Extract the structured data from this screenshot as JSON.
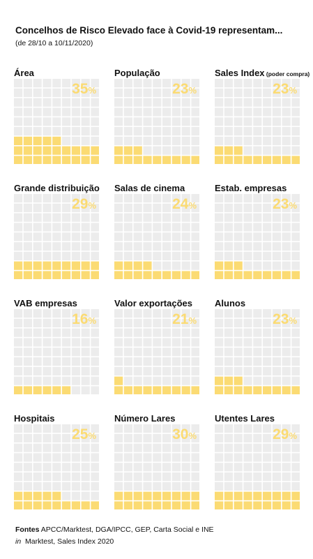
{
  "title": "Concelhos de Risco Elevado face à Covid-19 representam...",
  "subtitle": "(de 28/10 a 10/11/2020)",
  "colors": {
    "filled": "#fbdb73",
    "empty": "#ececec",
    "value_text": "#fbdb73"
  },
  "chart_data": [
    {
      "type": "waffle",
      "label": "Área",
      "value": 35,
      "unit": "%"
    },
    {
      "type": "waffle",
      "label": "População",
      "value": 23,
      "unit": "%"
    },
    {
      "type": "waffle",
      "label": "Sales Index",
      "label_suffix": "(poder compra)",
      "value": 23,
      "unit": "%"
    },
    {
      "type": "waffle",
      "label": "Grande distribuição",
      "value": 29,
      "unit": "%"
    },
    {
      "type": "waffle",
      "label": "Salas de cinema",
      "value": 24,
      "unit": "%"
    },
    {
      "type": "waffle",
      "label": "Estab. empresas",
      "value": 23,
      "unit": "%"
    },
    {
      "type": "waffle",
      "label": "VAB empresas",
      "value": 16,
      "unit": "%"
    },
    {
      "type": "waffle",
      "label": "Valor exportações",
      "value": 21,
      "unit": "%"
    },
    {
      "type": "waffle",
      "label": "Alunos",
      "value": 23,
      "unit": "%"
    },
    {
      "type": "waffle",
      "label": "Hospitais",
      "value": 25,
      "unit": "%"
    },
    {
      "type": "waffle",
      "label": "Número Lares",
      "value": 30,
      "unit": "%"
    },
    {
      "type": "waffle",
      "label": "Utentes Lares",
      "value": 29,
      "unit": "%"
    }
  ],
  "sources": {
    "label": "Fontes",
    "text": "APCC/Marktest, DGA/IPCC, GEP, Carta Social e INE",
    "in_label": "in",
    "in_text": "Marktest, Sales Index 2020"
  }
}
